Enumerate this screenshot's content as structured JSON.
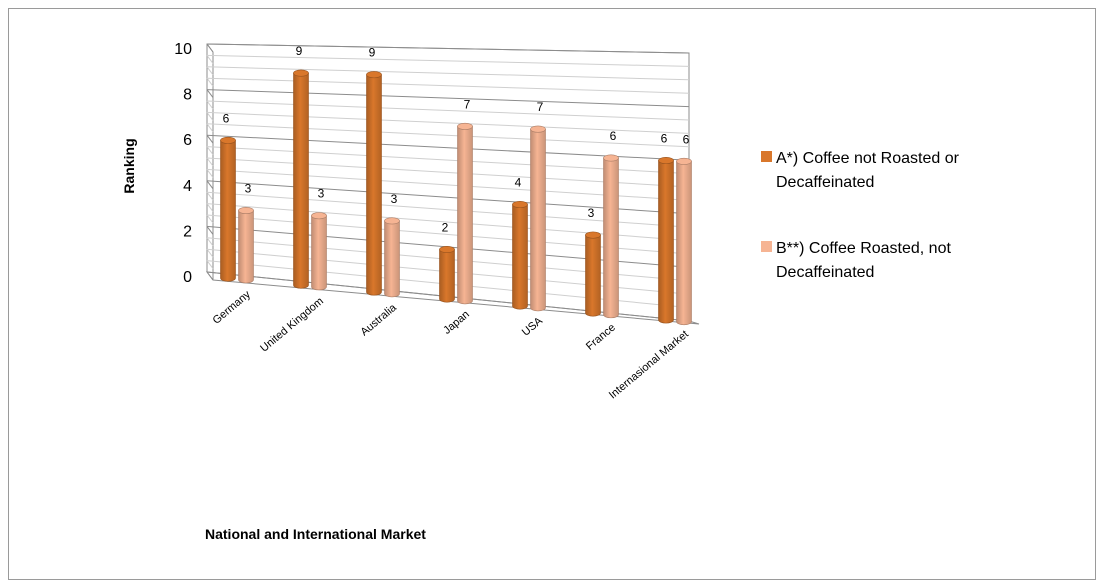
{
  "chart_data": {
    "type": "bar",
    "style": "3d-cylinder",
    "categories": [
      "Germany",
      "United Kingdom",
      "Australia",
      "Japan",
      "USA",
      "France",
      "Internasional Market"
    ],
    "series": [
      {
        "name": "A*) Coffee not Roasted or Decaffeinated",
        "legend_lines": [
          "A*) Coffee not Roasted or",
          "Decaffeinated"
        ],
        "values": [
          6,
          9,
          9,
          2,
          4,
          3,
          6
        ],
        "color": "#d9772b"
      },
      {
        "name": "B**) Coffee Roasted, not Decaffeinated",
        "legend_lines": [
          "B**) Coffee Roasted, not",
          "Decaffeinated"
        ],
        "values": [
          3,
          3,
          3,
          7,
          7,
          6,
          6
        ],
        "color": "#f6b493"
      }
    ],
    "data_labels": [
      [
        "6",
        "9",
        "9",
        "2",
        "4",
        "3",
        "6"
      ],
      [
        "3",
        "3",
        "3",
        "7",
        "7",
        "6",
        "6"
      ]
    ],
    "ylabel": "Ranking",
    "xlabel": "National and International Market",
    "ylim": [
      0,
      10
    ],
    "yticks": [
      0,
      2,
      4,
      6,
      8,
      10
    ],
    "ytick_labels": [
      "0",
      "2",
      "4",
      "6",
      "8",
      "10"
    ],
    "minor_gridlines": true,
    "legend": "right"
  }
}
